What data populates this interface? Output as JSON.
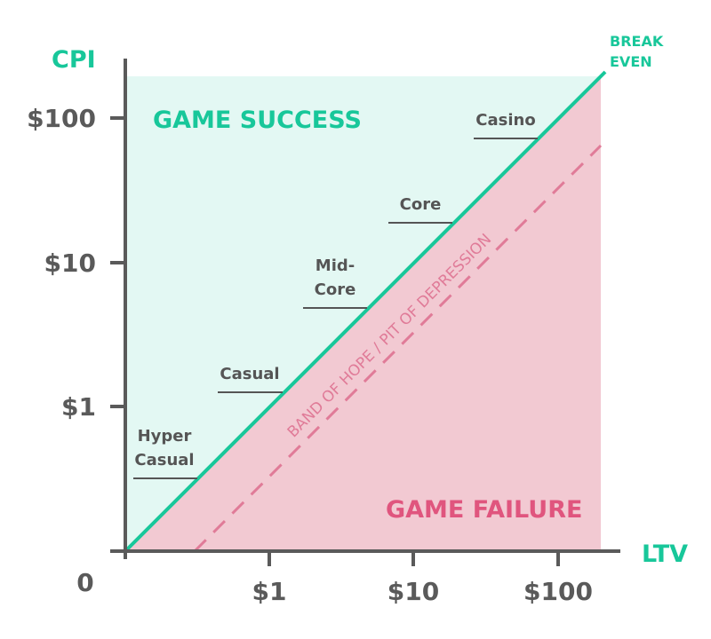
{
  "colors": {
    "success_fill": "#e3f8f3",
    "failure_fill": "#f2c9d2",
    "break_even_line": "#18c79a",
    "band_line": "#e07b98",
    "axis": "#5a5a5a",
    "success_text": "#18c79a",
    "failure_text": "#e0557e",
    "leader": "#555555"
  },
  "axes": {
    "y_title": "CPI",
    "x_title": "LTV",
    "origin_label": "0",
    "y_ticks": [
      "$1",
      "$10",
      "$100"
    ],
    "x_ticks": [
      "$1",
      "$10",
      "$100"
    ],
    "scale": "log"
  },
  "regions": {
    "success": "GAME SUCCESS",
    "failure": "GAME FAILURE"
  },
  "lines": {
    "break_even": [
      "BREAK",
      "EVEN"
    ],
    "band": "BAND OF HOPE / PIT OF DEPRESSION"
  },
  "segments": {
    "hyper_casual": [
      "Hyper",
      "Casual"
    ],
    "casual": [
      "Casual"
    ],
    "mid_core": [
      "Mid-",
      "Core"
    ],
    "core": [
      "Core"
    ],
    "casino": [
      "Casino"
    ]
  }
}
